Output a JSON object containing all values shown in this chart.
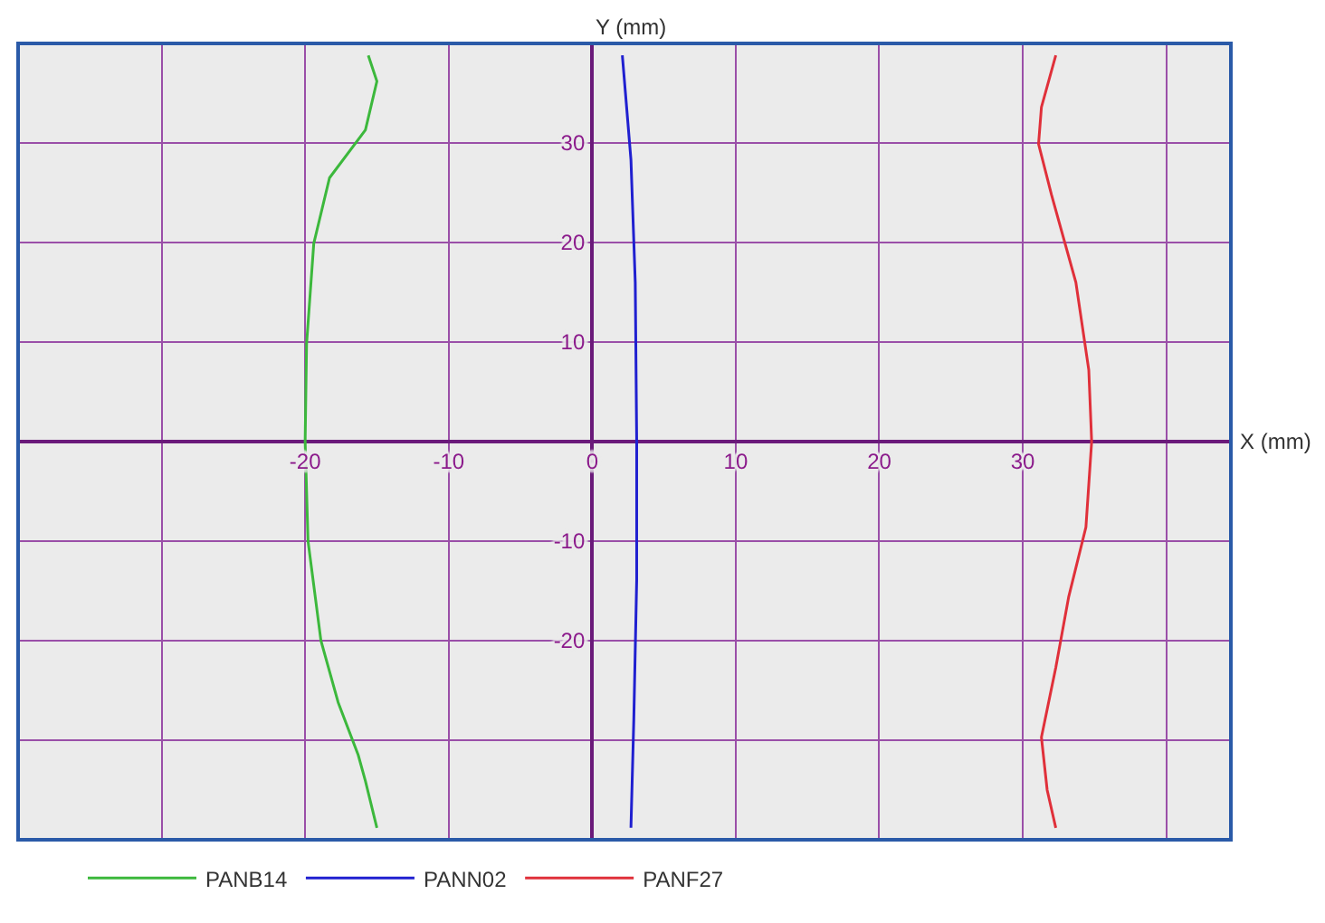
{
  "chart_data": {
    "type": "line",
    "xlabel": "X (mm)",
    "ylabel": "Y (mm)",
    "xlim": [
      -40,
      44.5
    ],
    "ylim": [
      -40,
      40
    ],
    "xticks": [
      {
        "value": -40,
        "label": null
      },
      {
        "value": -30,
        "label": null
      },
      -20,
      -10,
      0,
      10,
      20,
      30,
      {
        "value": 40,
        "label": null
      }
    ],
    "yticks": [
      {
        "value": -40,
        "label": null
      },
      {
        "value": -30,
        "label": null
      },
      -20,
      -10,
      {
        "value": 0,
        "label": null
      },
      10,
      20,
      30,
      {
        "value": 40,
        "label": null
      }
    ],
    "grid": true,
    "legend": "bottom",
    "series": [
      {
        "name": "PANB14",
        "color": "#3cb83c",
        "x": [
          -15.6,
          -15.0,
          -15.8,
          -18.3,
          -19.4,
          -19.9,
          -20,
          -19.8,
          -18.9,
          -17.7,
          -16.3,
          -15.8,
          -15.0
        ],
        "values": [
          38.8,
          36.2,
          31.3,
          26.5,
          19.9,
          9.8,
          0,
          -10,
          -20,
          -26.2,
          -31.5,
          -34.1,
          -38.8
        ]
      },
      {
        "name": "PANN02",
        "color": "#2020d0",
        "x": [
          2.1,
          2.7,
          3.0,
          3.1,
          3.1,
          2.9,
          2.7
        ],
        "values": [
          38.8,
          28.3,
          16,
          0,
          -13.9,
          -27.9,
          -38.8
        ]
      },
      {
        "name": "PANF27",
        "color": "#e0303a",
        "x": [
          32.3,
          31.3,
          31.1,
          32.0,
          33.7,
          34.6,
          34.8,
          34.4,
          33.2,
          32.3,
          31.3,
          31.7,
          32.3
        ],
        "values": [
          38.8,
          33.6,
          29.9,
          24.8,
          16,
          7.2,
          0,
          -8.6,
          -15.6,
          -22.7,
          -29.7,
          -35,
          -38.8
        ]
      }
    ]
  }
}
